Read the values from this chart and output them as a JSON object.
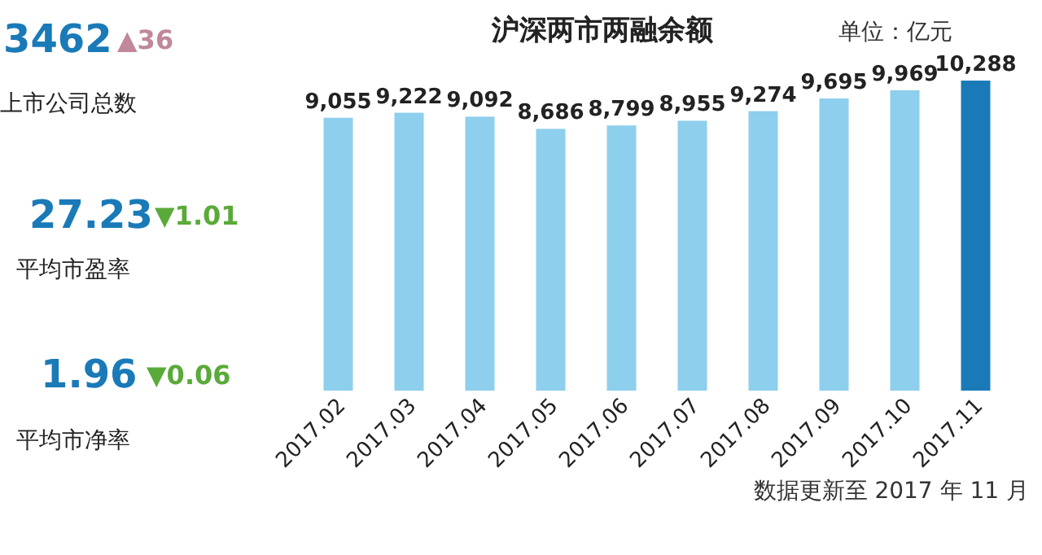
{
  "chart_data": [
    {
      "type": "bar",
      "title": "沪深两市两融余额",
      "subtitle": "单位：亿元",
      "categories": [
        "2017.02",
        "2017.03",
        "2017.04",
        "2017.05",
        "2017.06",
        "2017.07",
        "2017.08",
        "2017.09",
        "2017.10",
        "2017.11"
      ],
      "values": [
        9055,
        9222,
        9092,
        8686,
        8799,
        8955,
        9274,
        9695,
        9969,
        10288
      ],
      "colors": [
        "#8dcfec",
        "#8dcfec",
        "#8dcfec",
        "#8dcfec",
        "#8dcfec",
        "#8dcfec",
        "#8dcfec",
        "#8dcfec",
        "#8dcfec",
        "#1a7ab8"
      ],
      "value_labels": [
        "9,055",
        "9,222",
        "9,092",
        "8,686",
        "8,799",
        "8,955",
        "9,274",
        "9,695",
        "9,969",
        "10,288"
      ],
      "annotations": [
        "数据更新至 2017 年 11 月"
      ]
    },
    {
      "type": "other",
      "annotations": [
        "3462",
        "▲36",
        "上市公司总数",
        "27.23",
        "▼1.01",
        "平均市盈率",
        "1.96",
        "▼0.06",
        "平均市净率"
      ]
    }
  ]
}
